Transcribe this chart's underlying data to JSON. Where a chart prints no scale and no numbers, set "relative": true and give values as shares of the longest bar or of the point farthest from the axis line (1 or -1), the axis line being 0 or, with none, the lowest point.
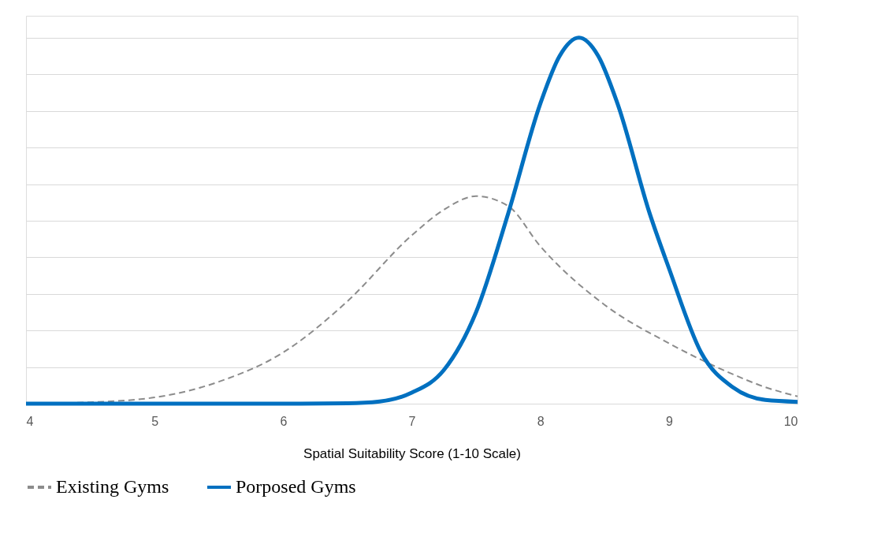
{
  "chart_data": {
    "type": "line",
    "relative": true,
    "xlabel": "Spatial Suitability Score (1-10 Scale)",
    "xlim": [
      4,
      10
    ],
    "xticks": [
      4,
      5,
      6,
      7,
      8,
      9,
      10
    ],
    "grid": "y",
    "legend": "bottom",
    "series": [
      {
        "name": "Existing Gyms",
        "color": "#8c8c8c",
        "line_style": "dashed",
        "x": [
          4,
          4.5,
          5,
          5.5,
          6,
          6.5,
          7,
          7.25,
          7.5,
          7.75,
          8,
          8.5,
          9,
          9.5,
          9.75,
          10
        ],
        "values": [
          0,
          0.004,
          0.017,
          0.06,
          0.14,
          0.28,
          0.46,
          0.53,
          0.567,
          0.54,
          0.43,
          0.27,
          0.165,
          0.08,
          0.045,
          0.02
        ]
      },
      {
        "name": "Porposed Gyms",
        "color": "#0070c0",
        "line_style": "solid",
        "x": [
          4,
          5,
          6,
          6.5,
          6.75,
          7,
          7.25,
          7.5,
          7.75,
          8,
          8.15,
          8.3,
          8.45,
          8.6,
          8.85,
          9,
          9.25,
          9.5,
          9.75,
          10
        ],
        "values": [
          0,
          0,
          0,
          0.001,
          0.006,
          0.03,
          0.092,
          0.25,
          0.52,
          0.82,
          0.95,
          1,
          0.95,
          0.82,
          0.52,
          0.37,
          0.14,
          0.044,
          0.01,
          0.005
        ]
      }
    ]
  }
}
